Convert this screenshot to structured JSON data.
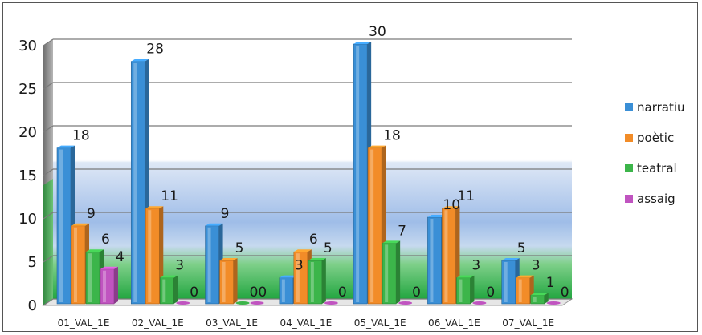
{
  "chart_data": {
    "type": "bar",
    "title": "",
    "xlabel": "",
    "ylabel": "",
    "ylim": [
      0,
      30
    ],
    "yticks": [
      0,
      5,
      10,
      15,
      20,
      25,
      30
    ],
    "grid": true,
    "legend_position": "right",
    "categories": [
      "01_VAL_1E",
      "02_VAL_1E",
      "03_VAL_1E",
      "04_VAL_1E",
      "05_VAL_1E",
      "06_VAL_1E",
      "07_VAL_1E"
    ],
    "series": [
      {
        "name": "narratiu",
        "color": "#3a8fd6",
        "values": [
          18,
          28,
          9,
          3,
          30,
          10,
          5
        ]
      },
      {
        "name": "poètic",
        "color": "#f28c28",
        "values": [
          9,
          11,
          5,
          6,
          18,
          11,
          3
        ]
      },
      {
        "name": "teatral",
        "color": "#3cb54a",
        "values": [
          6,
          3,
          0,
          5,
          7,
          3,
          1
        ]
      },
      {
        "name": "assaig",
        "color": "#c054c0",
        "values": [
          4,
          0,
          0,
          0,
          0,
          0,
          0
        ]
      }
    ],
    "data_labels": [
      [
        "18",
        "9",
        "6",
        "4"
      ],
      [
        "28",
        "11",
        "3",
        "0"
      ],
      [
        "9",
        "5",
        "00",
        ""
      ],
      [
        "3",
        "6",
        "5",
        "0"
      ],
      [
        "30",
        "18",
        "7",
        "0"
      ],
      [
        "10",
        "11",
        "3",
        "0"
      ],
      [
        "5",
        "3",
        "1",
        "0"
      ]
    ]
  }
}
